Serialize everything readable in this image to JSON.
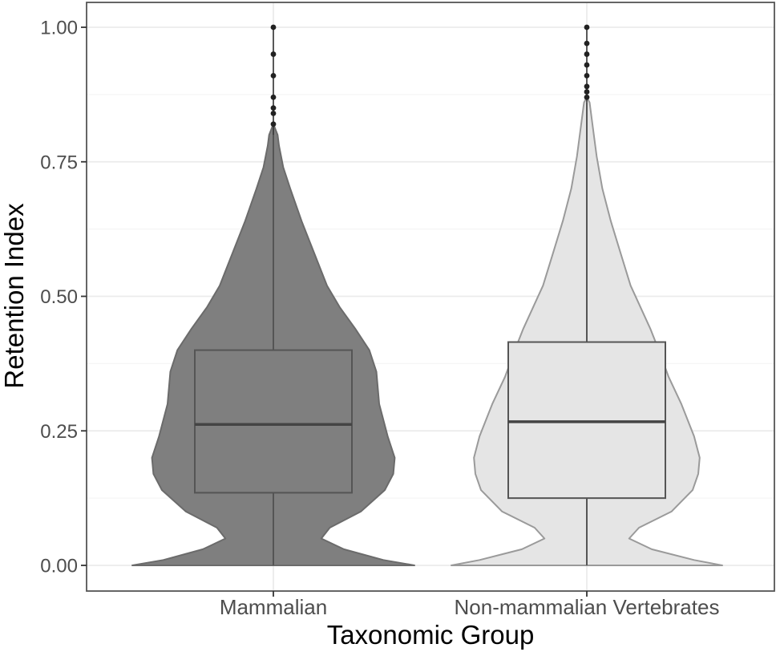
{
  "chart_data": {
    "type": "violin",
    "title": "",
    "xlabel": "Taxonomic Group",
    "ylabel": "Retention Index",
    "ylim": [
      0,
      1
    ],
    "y_ticks": [
      "0.00",
      "0.25",
      "0.50",
      "0.75",
      "1.00"
    ],
    "y_tick_values": [
      0,
      0.25,
      0.5,
      0.75,
      1.0
    ],
    "grid": true,
    "legend": "none",
    "categories": [
      "Mammalian",
      "Non-mammalian Vertebrates"
    ],
    "series": [
      {
        "category": "Mammalian",
        "fill_color": "#7f7f7f",
        "outline_color": "#6b6b6b",
        "box": {
          "q1": 0.135,
          "median": 0.262,
          "q3": 0.4,
          "whisker_low": 0.0,
          "whisker_high": 0.8
        },
        "outliers": [
          0.82,
          0.84,
          0.85,
          0.87,
          0.91,
          0.95,
          1.0
        ],
        "density_profile": [
          [
            0.0,
            1.0
          ],
          [
            0.01,
            0.78
          ],
          [
            0.03,
            0.5
          ],
          [
            0.05,
            0.34
          ],
          [
            0.07,
            0.4
          ],
          [
            0.1,
            0.62
          ],
          [
            0.14,
            0.79
          ],
          [
            0.17,
            0.85
          ],
          [
            0.2,
            0.86
          ],
          [
            0.24,
            0.81
          ],
          [
            0.3,
            0.75
          ],
          [
            0.36,
            0.73
          ],
          [
            0.4,
            0.68
          ],
          [
            0.44,
            0.58
          ],
          [
            0.48,
            0.47
          ],
          [
            0.52,
            0.38
          ],
          [
            0.58,
            0.29
          ],
          [
            0.64,
            0.2
          ],
          [
            0.7,
            0.12
          ],
          [
            0.74,
            0.07
          ],
          [
            0.78,
            0.04
          ],
          [
            0.8,
            0.03
          ],
          [
            0.82,
            0.0
          ]
        ]
      },
      {
        "category": "Non-mammalian Vertebrates",
        "fill_color": "#e5e5e5",
        "outline_color": "#9a9a9a",
        "box": {
          "q1": 0.125,
          "median": 0.267,
          "q3": 0.415,
          "whisker_low": 0.0,
          "whisker_high": 0.86
        },
        "outliers": [
          0.87,
          0.88,
          0.89,
          0.91,
          0.93,
          0.95,
          0.97,
          1.0
        ],
        "density_profile": [
          [
            0.0,
            0.96
          ],
          [
            0.01,
            0.76
          ],
          [
            0.03,
            0.46
          ],
          [
            0.05,
            0.3
          ],
          [
            0.07,
            0.37
          ],
          [
            0.1,
            0.6
          ],
          [
            0.14,
            0.75
          ],
          [
            0.17,
            0.79
          ],
          [
            0.2,
            0.8
          ],
          [
            0.24,
            0.76
          ],
          [
            0.3,
            0.67
          ],
          [
            0.35,
            0.58
          ],
          [
            0.4,
            0.51
          ],
          [
            0.44,
            0.45
          ],
          [
            0.48,
            0.38
          ],
          [
            0.52,
            0.31
          ],
          [
            0.58,
            0.24
          ],
          [
            0.64,
            0.17
          ],
          [
            0.7,
            0.11
          ],
          [
            0.76,
            0.07
          ],
          [
            0.82,
            0.04
          ],
          [
            0.86,
            0.02
          ],
          [
            0.87,
            0.0
          ]
        ]
      }
    ]
  }
}
